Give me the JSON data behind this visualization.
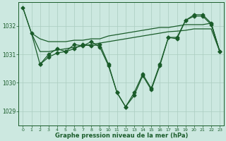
{
  "bg_color": "#cce8e0",
  "grid_color": "#aaccc0",
  "line_color": "#1a5c2a",
  "xlabel": "Graphe pression niveau de la mer (hPa)",
  "xlim": [
    -0.5,
    23.5
  ],
  "ylim": [
    1028.5,
    1032.85
  ],
  "yticks": [
    1029,
    1030,
    1031,
    1032
  ],
  "xticks": [
    0,
    1,
    2,
    3,
    4,
    5,
    6,
    7,
    8,
    9,
    10,
    11,
    12,
    13,
    14,
    15,
    16,
    17,
    18,
    19,
    20,
    21,
    22,
    23
  ],
  "line_upper_x": [
    0,
    1,
    2,
    3,
    4,
    5,
    6,
    7,
    8,
    9,
    10,
    11,
    12,
    13,
    14,
    15,
    16,
    17,
    18,
    19,
    20,
    21,
    22,
    23
  ],
  "line_upper_y": [
    1032.65,
    1031.75,
    1031.55,
    1031.45,
    1031.45,
    1031.45,
    1031.5,
    1031.5,
    1031.55,
    1031.55,
    1031.65,
    1031.7,
    1031.75,
    1031.8,
    1031.85,
    1031.9,
    1031.95,
    1031.95,
    1032.0,
    1032.05,
    1032.05,
    1032.05,
    1032.1,
    1031.1
  ],
  "line_lower_x": [
    1,
    2,
    3,
    4,
    5,
    6,
    7,
    8,
    9,
    10,
    11,
    12,
    13,
    14,
    15,
    16,
    17,
    18,
    19,
    20,
    21,
    22,
    23
  ],
  "line_lower_y": [
    1031.75,
    1031.1,
    1031.1,
    1031.15,
    1031.2,
    1031.25,
    1031.3,
    1031.35,
    1031.4,
    1031.45,
    1031.5,
    1031.55,
    1031.6,
    1031.65,
    1031.7,
    1031.75,
    1031.8,
    1031.82,
    1031.85,
    1031.9,
    1031.9,
    1031.9,
    1031.1
  ],
  "line_volatile1_x": [
    0,
    1,
    2,
    3,
    4,
    5,
    6,
    7,
    8,
    9,
    10,
    11,
    12,
    13,
    14,
    15,
    16,
    17,
    18,
    19,
    20,
    21,
    22,
    23
  ],
  "line_volatile1_y": [
    1032.65,
    1031.75,
    1030.65,
    1031.0,
    1031.2,
    1031.1,
    1031.35,
    1031.3,
    1031.45,
    1031.25,
    1030.6,
    1029.65,
    1029.15,
    1029.65,
    1030.3,
    1029.8,
    1030.65,
    1031.6,
    1031.6,
    1032.2,
    1032.4,
    1032.4,
    1032.1,
    1031.1
  ],
  "line_volatile2_x": [
    2,
    3,
    4,
    5,
    6,
    7,
    8,
    9,
    10,
    11,
    12,
    13,
    14,
    15,
    16,
    17,
    18,
    19,
    20,
    21,
    22,
    23
  ],
  "line_volatile2_y": [
    1030.65,
    1030.9,
    1031.05,
    1031.1,
    1031.2,
    1031.35,
    1031.3,
    1031.35,
    1030.65,
    1029.65,
    1029.15,
    1029.55,
    1030.25,
    1029.75,
    1030.6,
    1031.6,
    1031.55,
    1032.2,
    1032.35,
    1032.35,
    1032.05,
    1031.1
  ]
}
